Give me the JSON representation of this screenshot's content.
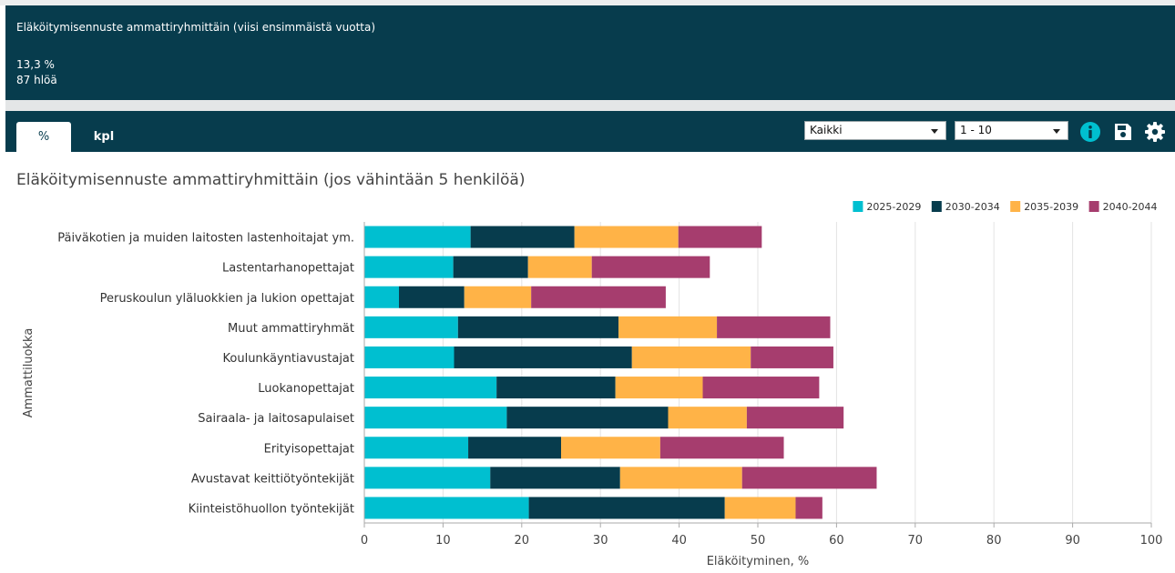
{
  "summary": {
    "title": "Eläköitymisennuste ammattiryhmittäin (viisi ensimmäistä vuotta)",
    "percent": "13,3 %",
    "count": "87 hlöä"
  },
  "tabs": [
    {
      "label": "%",
      "active": true
    },
    {
      "label": "kpl",
      "active": false
    }
  ],
  "filters": {
    "group_value": "Kaikki",
    "range_value": "1 - 10"
  },
  "toolbar_icons": [
    "info-icon",
    "save-icon",
    "gear-icon"
  ],
  "colors": {
    "header_bg": "#073c4d",
    "series": [
      "#00bfd0",
      "#073c4d",
      "#ffb347",
      "#a63d6e"
    ]
  },
  "chart_data": {
    "type": "bar",
    "orientation": "horizontal",
    "stacked": true,
    "title": "Eläköitymisennuste ammattiryhmittäin (jos vähintään 5 henkilöä)",
    "xlabel": "Eläköityminen, %",
    "ylabel": "Ammattiluokka",
    "xlim": [
      0,
      100
    ],
    "xticks": [
      0,
      10,
      20,
      30,
      40,
      50,
      60,
      70,
      80,
      90,
      100
    ],
    "grid": true,
    "legend_position": "top-right",
    "categories": [
      "Päiväkotien ja muiden laitosten lastenhoitajat ym.",
      "Lastentarhanopettajat",
      "Peruskoulun yläluokkien ja lukion opettajat",
      "Muut ammattiryhmät",
      "Koulunkäyntiavustajat",
      "Luokanopettajat",
      "Sairaala- ja laitosapulaiset",
      "Erityisopettajat",
      "Avustavat keittiötyöntekijät",
      "Kiinteistöhuollon työntekijät"
    ],
    "series": [
      {
        "name": "2025-2029",
        "color": "#00bfd0",
        "values": [
          13.5,
          11.3,
          4.4,
          11.9,
          11.4,
          16.8,
          18.1,
          13.2,
          16.0,
          20.9
        ]
      },
      {
        "name": "2030-2034",
        "color": "#073c4d",
        "values": [
          13.2,
          9.5,
          8.3,
          20.4,
          22.6,
          15.1,
          20.5,
          11.8,
          16.5,
          24.9
        ]
      },
      {
        "name": "2035-2039",
        "color": "#ffb347",
        "values": [
          13.2,
          8.1,
          8.5,
          12.5,
          15.1,
          11.1,
          10.0,
          12.6,
          15.5,
          9.0
        ]
      },
      {
        "name": "2040-2044",
        "color": "#a63d6e",
        "values": [
          10.6,
          15.0,
          17.1,
          14.4,
          10.5,
          14.8,
          12.3,
          15.7,
          17.1,
          3.4
        ]
      }
    ]
  }
}
